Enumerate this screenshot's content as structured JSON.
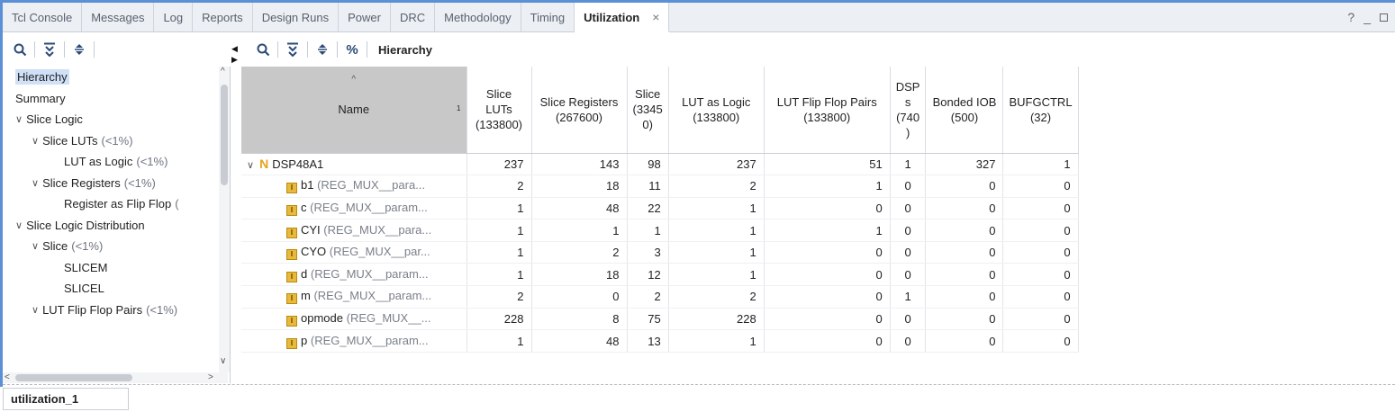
{
  "tabs": [
    {
      "label": "Tcl Console"
    },
    {
      "label": "Messages"
    },
    {
      "label": "Log"
    },
    {
      "label": "Reports"
    },
    {
      "label": "Design Runs"
    },
    {
      "label": "Power"
    },
    {
      "label": "DRC"
    },
    {
      "label": "Methodology"
    },
    {
      "label": "Timing"
    },
    {
      "label": "Utilization",
      "active": true
    }
  ],
  "window_controls": {
    "help": "?",
    "minimize": "_"
  },
  "left_toolbar": {
    "icons": [
      "search-icon",
      "collapse-all-icon",
      "expand-all-icon"
    ]
  },
  "right_toolbar": {
    "icons": [
      "search-icon",
      "collapse-all-icon",
      "expand-all-icon",
      "percent-icon"
    ],
    "label": "Hierarchy",
    "percent": "%"
  },
  "tree": {
    "items": [
      {
        "label": "Hierarchy",
        "pct": "",
        "indent": 0,
        "caret": "",
        "selected": true
      },
      {
        "label": "Summary",
        "pct": "",
        "indent": 0,
        "caret": ""
      },
      {
        "label": "Slice Logic",
        "pct": "",
        "indent": 0,
        "caret": "∨"
      },
      {
        "label": "Slice LUTs",
        "pct": "(<1%)",
        "indent": 1,
        "caret": "∨"
      },
      {
        "label": "LUT as Logic",
        "pct": "(<1%)",
        "indent": 3,
        "caret": ""
      },
      {
        "label": "Slice Registers",
        "pct": "(<1%)",
        "indent": 1,
        "caret": "∨"
      },
      {
        "label": "Register as Flip Flop",
        "pct": "(",
        "indent": 3,
        "caret": ""
      },
      {
        "label": "Slice Logic Distribution",
        "pct": "",
        "indent": 0,
        "caret": "∨"
      },
      {
        "label": "Slice",
        "pct": "(<1%)",
        "indent": 1,
        "caret": "∨"
      },
      {
        "label": "SLICEM",
        "pct": "",
        "indent": 3,
        "caret": ""
      },
      {
        "label": "SLICEL",
        "pct": "",
        "indent": 3,
        "caret": ""
      },
      {
        "label": "LUT Flip Flop Pairs",
        "pct": "(<1%)",
        "indent": 1,
        "caret": "∨"
      }
    ]
  },
  "table": {
    "columns": [
      {
        "l1": "",
        "l2": "Name",
        "l3": ""
      },
      {
        "l1": "Slice LUTs",
        "l2": "(133800)",
        "l3": ""
      },
      {
        "l1": "Slice Registers",
        "l2": "(267600)",
        "l3": ""
      },
      {
        "l1": "Slice",
        "l2": "(3345",
        "l3": "0)"
      },
      {
        "l1": "LUT as Logic",
        "l2": "(133800)",
        "l3": ""
      },
      {
        "l1": "LUT Flip Flop Pairs",
        "l2": "(133800)",
        "l3": ""
      },
      {
        "l1": "DSP",
        "l2": "s",
        "l3": "(740",
        "l4": ")"
      },
      {
        "l1": "Bonded IOB",
        "l2": "(500)",
        "l3": ""
      },
      {
        "l1": "BUFGCTRL",
        "l2": "(32)",
        "l3": ""
      }
    ],
    "sort_index": "1",
    "rows": [
      {
        "name": "DSP48A1",
        "module": "",
        "top": true,
        "values": [
          "237",
          "143",
          "98",
          "237",
          "51",
          "1",
          "327",
          "1"
        ]
      },
      {
        "name": "b1",
        "module": "(REG_MUX__para...",
        "values": [
          "2",
          "18",
          "11",
          "2",
          "1",
          "0",
          "0",
          "0"
        ]
      },
      {
        "name": "c",
        "module": "(REG_MUX__param...",
        "values": [
          "1",
          "48",
          "22",
          "1",
          "0",
          "0",
          "0",
          "0"
        ]
      },
      {
        "name": "CYI",
        "module": "(REG_MUX__para...",
        "values": [
          "1",
          "1",
          "1",
          "1",
          "1",
          "0",
          "0",
          "0"
        ]
      },
      {
        "name": "CYO",
        "module": "(REG_MUX__par...",
        "values": [
          "1",
          "2",
          "3",
          "1",
          "0",
          "0",
          "0",
          "0"
        ]
      },
      {
        "name": "d",
        "module": "(REG_MUX__param...",
        "values": [
          "1",
          "18",
          "12",
          "1",
          "0",
          "0",
          "0",
          "0"
        ]
      },
      {
        "name": "m",
        "module": "(REG_MUX__param...",
        "values": [
          "2",
          "0",
          "2",
          "2",
          "0",
          "1",
          "0",
          "0"
        ]
      },
      {
        "name": "opmode",
        "module": "(REG_MUX__...",
        "values": [
          "228",
          "8",
          "75",
          "228",
          "0",
          "0",
          "0",
          "0"
        ]
      },
      {
        "name": "p",
        "module": "(REG_MUX__param...",
        "values": [
          "1",
          "48",
          "13",
          "1",
          "0",
          "0",
          "0",
          "0"
        ]
      }
    ]
  },
  "bottom_tab": {
    "label": "utilization_1"
  },
  "colors": {
    "accent": "#5b8fd6",
    "selection": "#cfe0f7",
    "name_header": "#c8c8c8",
    "instance_icon": "#e8b93a"
  }
}
